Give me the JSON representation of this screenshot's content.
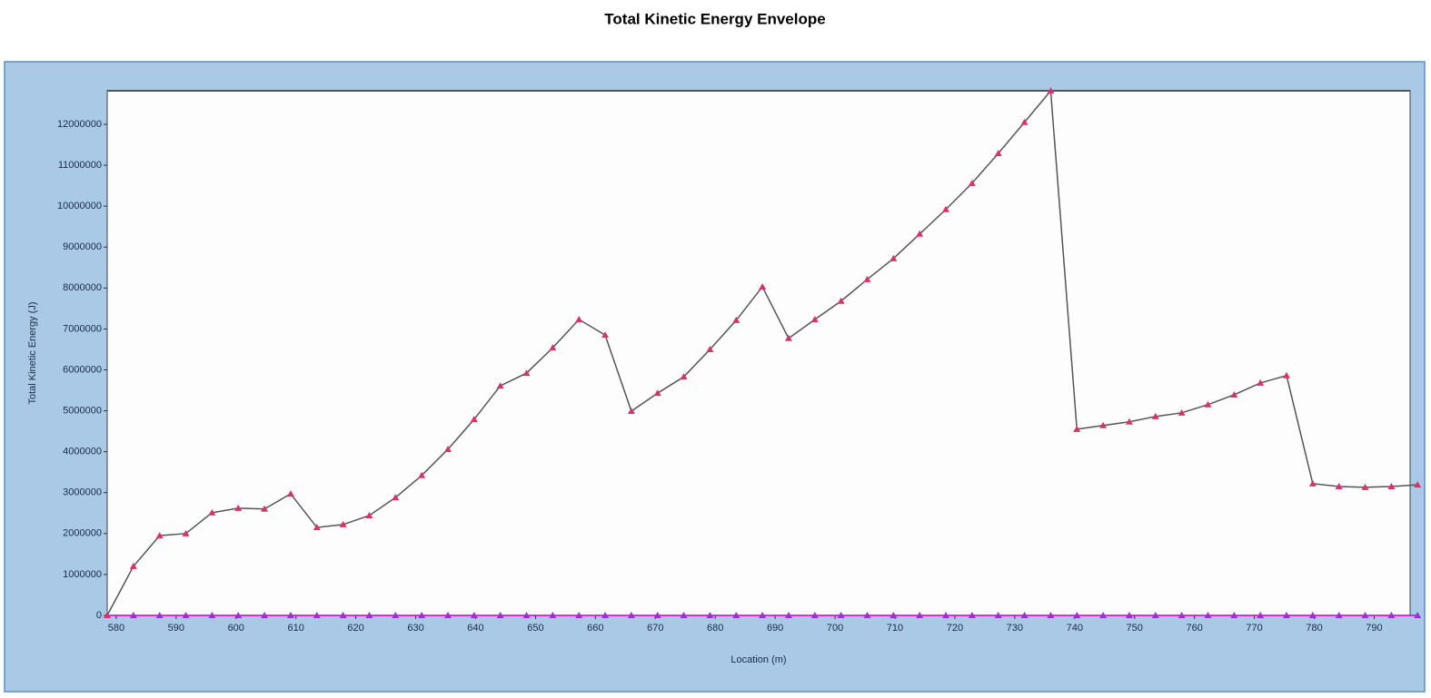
{
  "chart_data": {
    "type": "line",
    "title": "Total Kinetic Energy Envelope",
    "x_label": "Location (m)",
    "y_label": "Total Kinetic Energy (J)",
    "x": [
      578.5,
      582.875,
      587.25,
      591.625,
      596,
      600.375,
      604.75,
      609.125,
      613.5,
      617.875,
      622.25,
      626.625,
      631,
      635.375,
      639.75,
      644.125,
      648.5,
      652.875,
      657.25,
      661.625,
      666,
      670.375,
      674.75,
      679.125,
      683.5,
      687.875,
      692.25,
      696.625,
      701,
      705.375,
      709.75,
      714.125,
      718.5,
      722.875,
      727.25,
      731.625,
      736,
      740.375,
      744.75,
      749.125,
      753.5,
      757.875,
      762.25,
      766.625,
      771,
      775.375,
      779.75,
      784.125,
      788.5,
      792.875,
      797.25
    ],
    "series": [
      {
        "color": "#555555",
        "marker_color": "#d6336c",
        "values": [
          0,
          1200000,
          1950000,
          2000000,
          2510000,
          2620000,
          2600000,
          2970000,
          2150000,
          2220000,
          2440000,
          2880000,
          3420000,
          4060000,
          4790000,
          5610000,
          5920000,
          6540000,
          7230000,
          6850000,
          4990000,
          5430000,
          5830000,
          6500000,
          7210000,
          8030000,
          6770000,
          7230000,
          7680000,
          8210000,
          8720000,
          9320000,
          9920000,
          10560000,
          11290000,
          12050000,
          12820000,
          4550000,
          4640000,
          4730000,
          4860000,
          4950000,
          5150000,
          5390000,
          5680000,
          5860000,
          3220000,
          3150000,
          3130000,
          3150000,
          3190000
        ]
      },
      {
        "color": "#cc00cc",
        "marker_color": "#9933cc",
        "values": [
          0,
          0,
          0,
          0,
          0,
          0,
          0,
          0,
          0,
          0,
          0,
          0,
          0,
          0,
          0,
          0,
          0,
          0,
          0,
          0,
          0,
          0,
          0,
          0,
          0,
          0,
          0,
          0,
          0,
          0,
          0,
          0,
          0,
          0,
          0,
          0,
          0,
          0,
          0,
          0,
          0,
          0,
          0,
          0,
          0,
          0,
          0,
          0,
          0,
          0,
          0
        ]
      }
    ],
    "xlim": [
      578.5,
      796
    ],
    "xticks": [
      580,
      590,
      600,
      610,
      620,
      630,
      640,
      650,
      660,
      670,
      680,
      690,
      700,
      710,
      720,
      730,
      740,
      750,
      760,
      770,
      780,
      790
    ],
    "ylim": [
      0,
      12820000
    ],
    "yticks": [
      0,
      1000000,
      2000000,
      3000000,
      4000000,
      5000000,
      6000000,
      7000000,
      8000000,
      9000000,
      10000000,
      11000000,
      12000000
    ],
    "grid": false
  }
}
